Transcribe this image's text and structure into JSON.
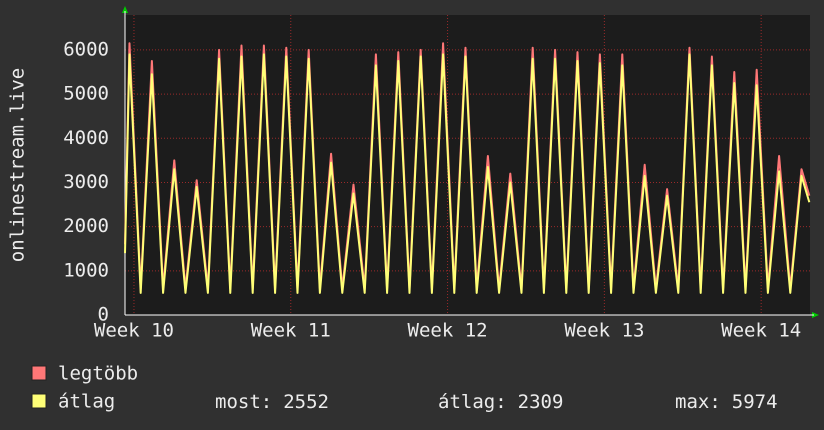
{
  "chart_data": {
    "type": "line",
    "ylabel": "onlinestream.live",
    "x": [
      0,
      0.2,
      0.7,
      1.2,
      1.7,
      2.2,
      2.7,
      3.2,
      3.7,
      4.2,
      4.7,
      5.2,
      5.7,
      6.2,
      6.7,
      7.2,
      7.7,
      8.2,
      8.7,
      9.2,
      9.7,
      10.2,
      10.7,
      11.2,
      11.7,
      12.2,
      12.7,
      13.2,
      13.7,
      14.2,
      14.7,
      15.2,
      15.7,
      16.2,
      16.7,
      17.2,
      17.7,
      18.2,
      18.7,
      19.2,
      19.7,
      20.2,
      20.7,
      21.2,
      21.7,
      22.2,
      22.7,
      23.2,
      23.7,
      24.2,
      24.7,
      25.2,
      25.7,
      26.2,
      26.7,
      27.2,
      27.7,
      28.2,
      28.7,
      29.2,
      29.7,
      30.2,
      30.55
    ],
    "series": [
      {
        "name": "legtöbb",
        "color": "#ff7777",
        "values": [
          1600,
          6150,
          600,
          5750,
          600,
          3500,
          600,
          3050,
          600,
          6000,
          600,
          6100,
          600,
          6100,
          600,
          6050,
          600,
          6000,
          600,
          3650,
          600,
          2950,
          600,
          5900,
          600,
          5950,
          600,
          6000,
          600,
          6150,
          600,
          6050,
          600,
          3600,
          600,
          3200,
          600,
          6050,
          600,
          6000,
          600,
          5950,
          600,
          5900,
          600,
          5900,
          600,
          3400,
          600,
          2850,
          600,
          6050,
          600,
          5850,
          600,
          5500,
          600,
          5550,
          600,
          3600,
          600,
          3300,
          2700
        ]
      },
      {
        "name": "átlag",
        "color": "#ffff77",
        "values": [
          1400,
          5900,
          500,
          5450,
          500,
          3300,
          500,
          2900,
          500,
          5800,
          500,
          5850,
          500,
          5900,
          500,
          5850,
          500,
          5800,
          500,
          3450,
          500,
          2750,
          500,
          5650,
          500,
          5750,
          500,
          5850,
          500,
          5900,
          500,
          5850,
          500,
          3350,
          500,
          3000,
          500,
          5800,
          500,
          5800,
          500,
          5750,
          500,
          5700,
          500,
          5650,
          500,
          3150,
          500,
          2700,
          500,
          5900,
          500,
          5650,
          500,
          5250,
          500,
          5200,
          500,
          3250,
          500,
          3150,
          2552
        ]
      }
    ],
    "xlim": [
      0,
      30.58
    ],
    "xticks": [
      {
        "value": 0.4,
        "label": "Week 10"
      },
      {
        "value": 7.4,
        "label": "Week 11"
      },
      {
        "value": 14.4,
        "label": "Week 12"
      },
      {
        "value": 21.4,
        "label": "Week 13"
      },
      {
        "value": 28.4,
        "label": "Week 14"
      }
    ],
    "ylim": [
      0,
      6790
    ],
    "yticks": [
      0,
      1000,
      2000,
      3000,
      4000,
      5000,
      6000
    ],
    "grid": true,
    "stats": [
      {
        "label": "most:",
        "value": 2552
      },
      {
        "label": "átlag:",
        "value": 2309
      },
      {
        "label": "max:",
        "value": 5974
      }
    ]
  }
}
